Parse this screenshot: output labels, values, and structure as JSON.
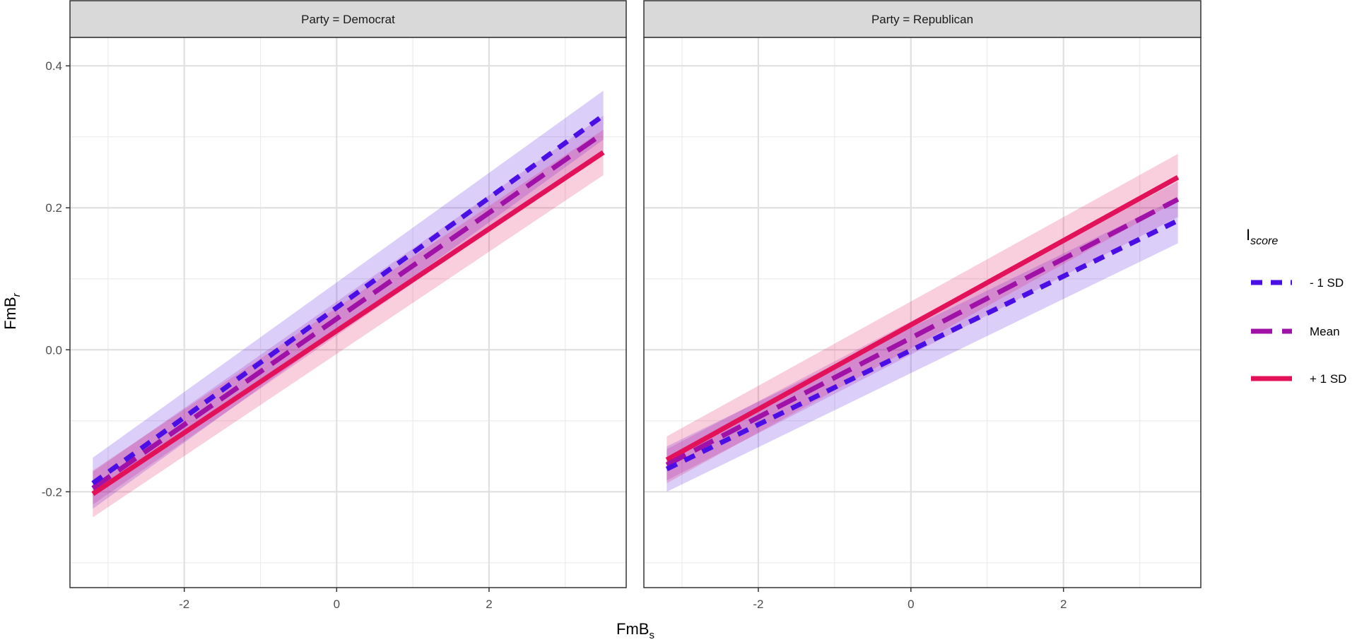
{
  "chart_data": {
    "type": "line",
    "xlabel": "FmB",
    "xlabel_sub": "s",
    "ylabel": "FmB",
    "ylabel_sub": "r",
    "xlim": [
      -3.5,
      3.8
    ],
    "ylim": [
      -0.335,
      0.44
    ],
    "x_ticks": [
      -2,
      0,
      2
    ],
    "x_tick_labels": [
      "-2",
      "0",
      "2"
    ],
    "y_ticks": [
      -0.2,
      0.0,
      0.2,
      0.4
    ],
    "y_tick_labels": [
      "-0.2",
      "0.0",
      "0.2",
      "0.4"
    ],
    "grid": true,
    "legend": {
      "position": "right",
      "title": "I",
      "title_sub": "score",
      "entries": [
        "- 1 SD",
        "Mean",
        "+ 1 SD"
      ]
    },
    "x_range": [
      -3.2,
      3.5
    ],
    "panels": [
      {
        "strip": "Party = Democrat",
        "series": [
          {
            "name": "- 1 SD",
            "color": "#4b0fe6",
            "dash": "dotted",
            "y": [
              -0.188,
              0.33
            ],
            "ci": [
              [
                -0.152,
                -0.224
              ],
              [
                0.365,
                0.296
              ]
            ]
          },
          {
            "name": "Mean",
            "color": "#a011a8",
            "dash": "dashed",
            "y": [
              -0.195,
              0.305
            ],
            "ci": [
              [
                -0.172,
                -0.218
              ],
              [
                0.33,
                0.28
              ]
            ]
          },
          {
            "name": "+ 1 SD",
            "color": "#e3105a",
            "dash": "solid",
            "y": [
              -0.203,
              0.278
            ],
            "ci": [
              [
                -0.17,
                -0.236
              ],
              [
                0.31,
                0.246
              ]
            ]
          }
        ]
      },
      {
        "strip": "Party = Republican",
        "series": [
          {
            "name": "- 1 SD",
            "color": "#4b0fe6",
            "dash": "dotted",
            "y": [
              -0.168,
              0.182
            ],
            "ci": [
              [
                -0.136,
                -0.2
              ],
              [
                0.214,
                0.15
              ]
            ]
          },
          {
            "name": "Mean",
            "color": "#a011a8",
            "dash": "dashed",
            "y": [
              -0.162,
              0.212
            ],
            "ci": [
              [
                -0.14,
                -0.184
              ],
              [
                0.237,
                0.187
              ]
            ]
          },
          {
            "name": "+ 1 SD",
            "color": "#e3105a",
            "dash": "solid",
            "y": [
              -0.155,
              0.243
            ],
            "ci": [
              [
                -0.122,
                -0.188
              ],
              [
                0.276,
                0.21
              ]
            ]
          }
        ]
      }
    ]
  }
}
